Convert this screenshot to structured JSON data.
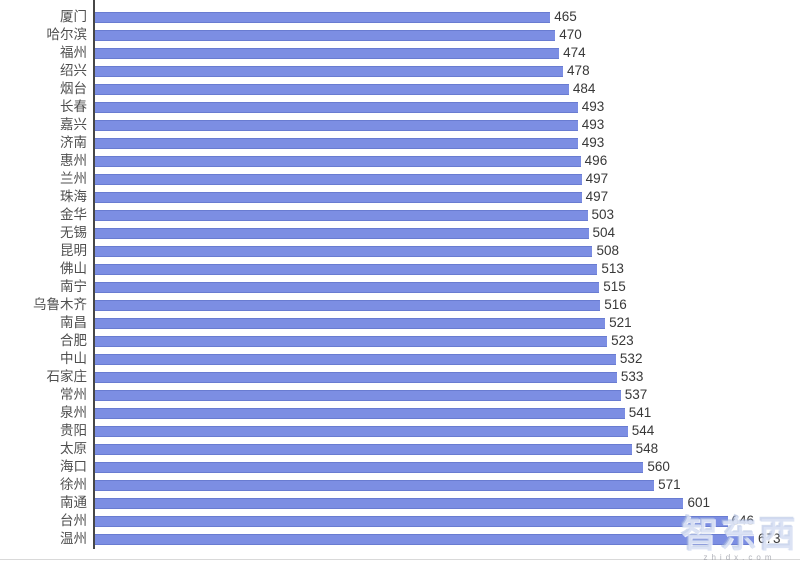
{
  "chart_data": {
    "type": "bar",
    "orientation": "horizontal",
    "title": "",
    "xlabel": "",
    "ylabel": "",
    "grid": false,
    "legend": false,
    "xlim": [
      0,
      720
    ],
    "bar_color": "#7c8ee3",
    "axis_color": "#474747",
    "categories": [
      "厦门",
      "哈尔滨",
      "福州",
      "绍兴",
      "烟台",
      "长春",
      "嘉兴",
      "济南",
      "惠州",
      "兰州",
      "珠海",
      "金华",
      "无锡",
      "昆明",
      "佛山",
      "南宁",
      "乌鲁木齐",
      "南昌",
      "合肥",
      "中山",
      "石家庄",
      "常州",
      "泉州",
      "贵阳",
      "太原",
      "海口",
      "徐州",
      "南通",
      "台州",
      "温州"
    ],
    "values": [
      465,
      470,
      474,
      478,
      484,
      493,
      493,
      493,
      496,
      497,
      497,
      503,
      504,
      508,
      513,
      515,
      516,
      521,
      523,
      532,
      533,
      537,
      541,
      544,
      548,
      560,
      571,
      601,
      646,
      673
    ]
  },
  "watermark": {
    "text": "智东西",
    "subtext": "zhidx.com"
  }
}
